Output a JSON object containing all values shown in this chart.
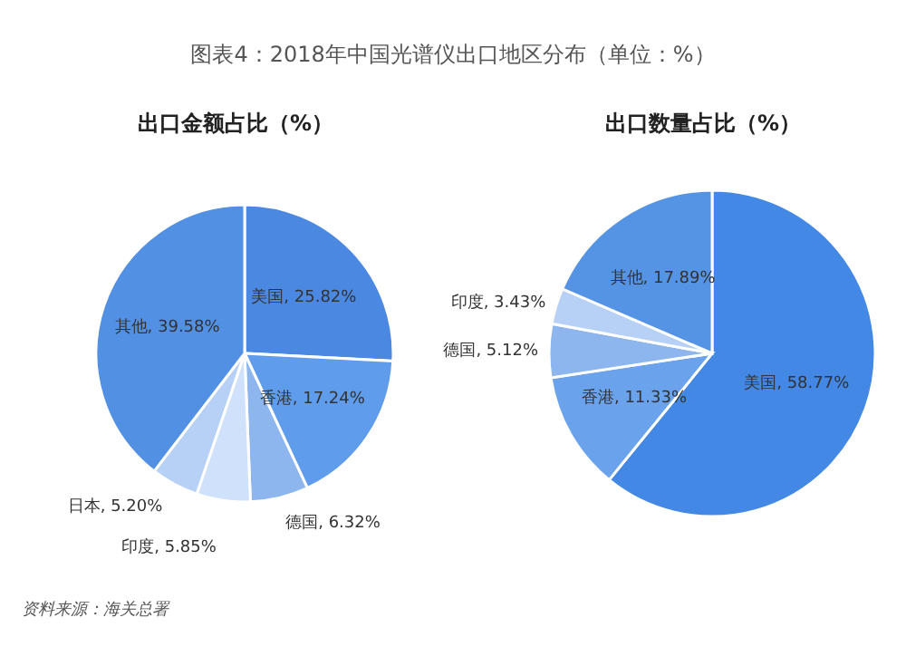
{
  "chart_data": [
    {
      "type": "pie",
      "title": "图表4：2018年中国光谱仪出口地区分布（单位：%）",
      "subtitle": "出口金额占比（%）",
      "categories": [
        "美国",
        "香港",
        "德国",
        "印度",
        "日本",
        "其他"
      ],
      "values": [
        25.82,
        17.24,
        6.32,
        5.85,
        5.2,
        39.58
      ],
      "value_labels": [
        "25.82%",
        "17.24%",
        "6.32%",
        "5.85%",
        "5.20%",
        "39.58%"
      ],
      "colors": [
        "#4a88e2",
        "#5f9ceb",
        "#8db6ef",
        "#cfe1fb",
        "#b7d1f6",
        "#5290e4"
      ],
      "annotations": [
        "资料来源：海关总署"
      ]
    },
    {
      "type": "pie",
      "title": "出口数量占比（%）",
      "categories": [
        "美国",
        "香港",
        "德国",
        "印度",
        "其他"
      ],
      "values": [
        58.77,
        11.33,
        5.12,
        3.43,
        17.89
      ],
      "value_labels": [
        "58.77%",
        "11.33%",
        "5.12%",
        "3.43%",
        "17.89%"
      ],
      "colors": [
        "#4288e4",
        "#6aa2ec",
        "#8db6ef",
        "#b7d1f6",
        "#5594e4"
      ]
    }
  ]
}
